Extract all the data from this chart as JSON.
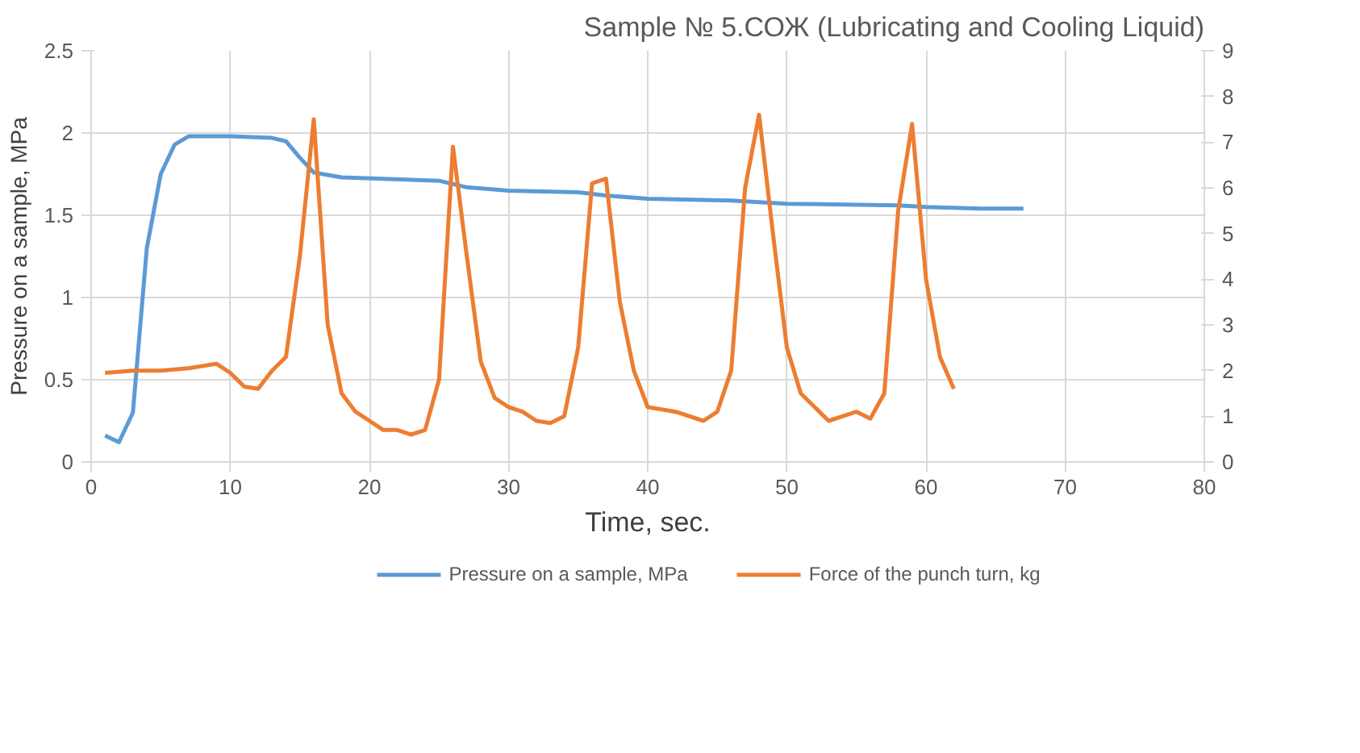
{
  "chart_data": {
    "type": "line",
    "title": "Sample № 5.СОЖ (Lubricating and Cooling Liquid)",
    "xlabel": "Time, sec.",
    "ylabel": "Pressure on a sample, MPa",
    "xlim": [
      0,
      80
    ],
    "xticks": [
      0,
      10,
      20,
      30,
      40,
      50,
      60,
      70,
      80
    ],
    "ylim": [
      0,
      2.5
    ],
    "yticks": [
      0,
      0.5,
      1,
      1.5,
      2,
      2.5
    ],
    "y2lim": [
      0,
      9
    ],
    "y2ticks": [
      0,
      1,
      2,
      3,
      4,
      5,
      6,
      7,
      8,
      9
    ],
    "grid": true,
    "legend": "bottom",
    "marker": "none",
    "line_style": "solid",
    "series": [
      {
        "name": "Pressure on a sample, MPa",
        "color": "#5b9bd5",
        "x": [
          1,
          2,
          3,
          4,
          5,
          6,
          7,
          10,
          13,
          14,
          15,
          16,
          18,
          25,
          27,
          30,
          35,
          37,
          40,
          46,
          50,
          58,
          60,
          64,
          67
        ],
        "values": [
          0.16,
          0.12,
          0.3,
          1.3,
          1.75,
          1.93,
          1.98,
          1.98,
          1.97,
          1.95,
          1.85,
          1.76,
          1.73,
          1.71,
          1.67,
          1.65,
          1.64,
          1.62,
          1.6,
          1.59,
          1.57,
          1.56,
          1.55,
          1.54,
          1.54
        ]
      },
      {
        "name": "Force of the punch turn, kg",
        "color": "#ed7d31",
        "axis": "y2",
        "x": [
          1,
          3,
          5,
          7,
          9,
          10,
          11,
          12,
          13,
          14,
          15,
          16,
          17,
          18,
          19,
          20,
          21,
          22,
          23,
          24,
          25,
          26,
          27,
          28,
          29,
          30,
          31,
          32,
          33,
          34,
          35,
          36,
          37,
          38,
          39,
          40,
          42,
          44,
          45,
          46,
          47,
          48,
          49,
          50,
          51,
          52,
          53,
          54,
          55,
          56,
          57,
          58,
          59,
          60,
          61,
          62
        ],
        "values": [
          1.95,
          2.0,
          2.0,
          2.05,
          2.15,
          1.95,
          1.65,
          1.6,
          2.0,
          2.3,
          4.5,
          7.5,
          3.0,
          1.5,
          1.1,
          0.9,
          0.7,
          0.7,
          0.6,
          0.7,
          1.8,
          6.9,
          4.5,
          2.2,
          1.4,
          1.2,
          1.1,
          0.9,
          0.85,
          1.0,
          2.5,
          6.1,
          6.2,
          3.5,
          2.0,
          1.2,
          1.1,
          0.9,
          1.1,
          2.0,
          6.0,
          7.6,
          5.0,
          2.5,
          1.5,
          1.2,
          0.9,
          1.0,
          1.1,
          0.95,
          1.5,
          5.5,
          7.4,
          4.0,
          2.3,
          1.6
        ]
      }
    ]
  }
}
